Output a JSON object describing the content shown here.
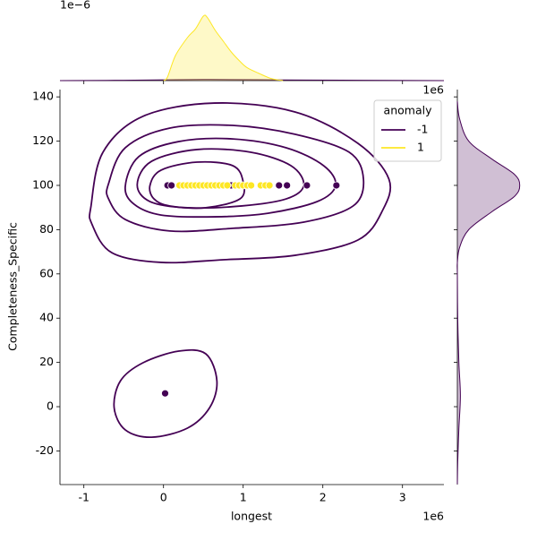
{
  "chart_data": [
    {
      "type": "scatter",
      "xlabel": "longest",
      "ylabel": "Completeness_Specific",
      "x_offset_label": "1e6",
      "xlim": [
        -1.3,
        3.52
      ],
      "ylim": [
        -35.2,
        143.3
      ],
      "xticks": [
        -1,
        0,
        1,
        2,
        3
      ],
      "yticks": [
        -20,
        0,
        20,
        40,
        60,
        80,
        100,
        120,
        140
      ],
      "legend_title": "anomaly",
      "legend": "upper right",
      "series": [
        {
          "name": "-1",
          "color": "#440154",
          "x": [
            0.05,
            0.1,
            0.85,
            1.45,
            1.55,
            1.8,
            2.17,
            0.02
          ],
          "y": [
            100,
            100,
            100,
            100,
            100,
            100,
            100,
            6
          ]
        },
        {
          "name": "1",
          "color": "#fde725",
          "x": [
            0.2,
            0.25,
            0.3,
            0.35,
            0.4,
            0.45,
            0.5,
            0.55,
            0.6,
            0.65,
            0.7,
            0.75,
            0.8,
            0.9,
            0.95,
            1.0,
            1.05,
            1.1,
            1.22,
            1.28,
            1.33
          ],
          "y": [
            100,
            100,
            100,
            100,
            100,
            100,
            100,
            100,
            100,
            100,
            100,
            100,
            100,
            100,
            100,
            100,
            100,
            100,
            100,
            100,
            100
          ]
        }
      ],
      "contours": [
        {
          "color": "#440154",
          "x": [
            -0.91,
            -0.76,
            -0.26,
            0.64,
            1.65,
            2.44,
            2.83,
            2.75,
            2.44,
            1.65,
            0.75,
            -0.03,
            -0.65,
            -0.9
          ],
          "y": [
            90.7,
            115,
            131.2,
            137.2,
            133.2,
            119,
            102.8,
            88.7,
            75.3,
            68.4,
            66.4,
            65.2,
            69.6,
            82.6
          ]
        },
        {
          "color": "#440154",
          "x": [
            -0.69,
            -0.48,
            0.08,
            0.87,
            1.65,
            2.33,
            2.51,
            2.38,
            1.76,
            0.87,
            0.08,
            -0.48,
            -0.69
          ],
          "y": [
            100.8,
            117,
            125.9,
            127.1,
            123.1,
            115,
            102.8,
            90.7,
            83.4,
            80.6,
            79.4,
            84.6,
            93.9
          ]
        },
        {
          "color": "#440154",
          "x": [
            -0.48,
            -0.31,
            0.19,
            0.87,
            1.54,
            2.01,
            2.16,
            1.93,
            1.31,
            0.64,
            -0.03,
            -0.37
          ],
          "y": [
            99.6,
            113,
            119.8,
            121,
            117,
            108.9,
            100,
            92.7,
            87.4,
            85.8,
            86.6,
            91.5
          ]
        },
        {
          "color": "#440154",
          "x": [
            -0.33,
            -0.15,
            0.42,
            1.09,
            1.6,
            1.76,
            1.54,
            0.98,
            0.3,
            -0.17
          ],
          "y": [
            100.4,
            110.9,
            116.2,
            115,
            108.9,
            100,
            93.9,
            90.7,
            89.9,
            92.7
          ]
        },
        {
          "color": "#440154",
          "x": [
            -0.17,
            -0.03,
            0.42,
            0.87,
            1,
            0.96,
            0.53,
            0.08,
            -0.12
          ],
          "y": [
            100,
            106.9,
            110.5,
            108.9,
            101.6,
            93.9,
            89.9,
            90.7,
            93.9
          ]
        },
        {
          "color": "#440154",
          "x": [
            -0.62,
            -0.54,
            -0.26,
            0.19,
            0.53,
            0.67,
            0.58,
            0.3,
            -0.15,
            -0.48
          ],
          "y": [
            -0.4,
            11.7,
            19.8,
            25.1,
            23.9,
            11.7,
            -0.4,
            -9.7,
            -13.8,
            -10.5
          ]
        }
      ]
    },
    {
      "type": "kde",
      "orient": "horizontal",
      "y_offset_label": "1e−6",
      "xlim": [
        -1.3,
        3.52
      ],
      "ylim": [
        0,
        1
      ],
      "xticks": [
        -1,
        0,
        1,
        2,
        3
      ],
      "series": [
        {
          "color": "#440154",
          "x": [
            -1.3,
            -0.5,
            0.5,
            1.5,
            2.5,
            3.52
          ],
          "values": [
            0,
            0.005,
            0.015,
            0.01,
            0.005,
            0
          ]
        },
        {
          "color": "#fde725",
          "x": [
            0.0,
            0.05,
            0.15,
            0.3,
            0.4,
            0.5,
            0.55,
            0.65,
            0.75,
            0.85,
            0.95,
            1.05,
            1.2,
            1.35,
            1.5
          ],
          "values": [
            0,
            0.05,
            0.35,
            0.6,
            0.72,
            0.9,
            0.88,
            0.7,
            0.55,
            0.4,
            0.28,
            0.18,
            0.1,
            0.03,
            0
          ]
        }
      ]
    },
    {
      "type": "kde",
      "orient": "vertical",
      "x_offset_label": "1e6",
      "xlim": [
        0,
        1
      ],
      "ylim": [
        -35.2,
        143.3
      ],
      "yticks": [
        -20,
        0,
        20,
        40,
        60,
        80,
        100,
        120,
        140
      ],
      "series": [
        {
          "color": "#440154",
          "y": [
            138,
            130,
            120,
            112,
            105,
            100,
            95,
            88,
            80,
            72,
            65,
            60,
            40,
            20,
            5,
            -10,
            -25,
            -35
          ],
          "values": [
            0,
            0.03,
            0.15,
            0.45,
            0.75,
            0.82,
            0.75,
            0.45,
            0.15,
            0.03,
            0,
            0,
            0.005,
            0.02,
            0.04,
            0.02,
            0.005,
            0
          ]
        }
      ]
    }
  ]
}
